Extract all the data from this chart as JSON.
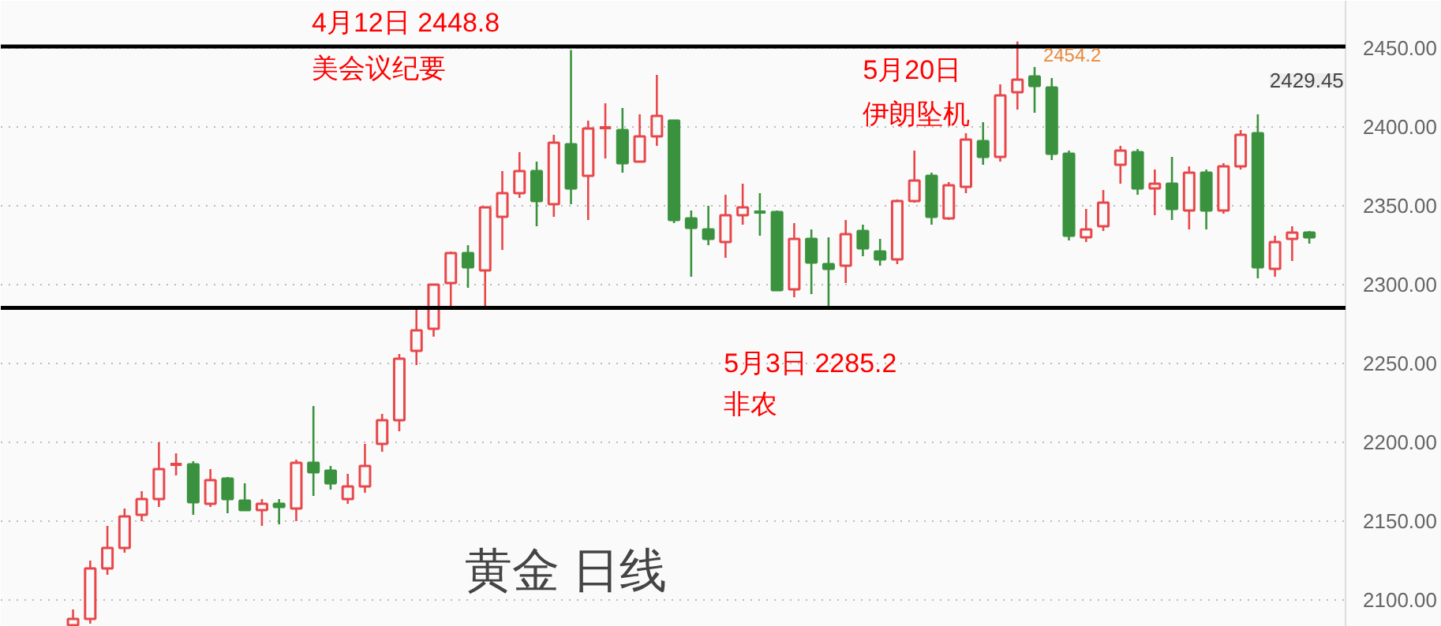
{
  "chart_data": {
    "type": "candlestick",
    "title": "黄金 日线",
    "categories": [
      null,
      null,
      null,
      null,
      null,
      null,
      null,
      null,
      null,
      null,
      null,
      null,
      null,
      null,
      null,
      null,
      null,
      null,
      null,
      null,
      null,
      null,
      null,
      null,
      null,
      null,
      null,
      null,
      null,
      null,
      null,
      null,
      null,
      null,
      null,
      null,
      null,
      null,
      null,
      null,
      null,
      null,
      null,
      null,
      null,
      null,
      null,
      null,
      null,
      null,
      null,
      null,
      null,
      null,
      null,
      null,
      null,
      null,
      null,
      null,
      null,
      null,
      null,
      null,
      null,
      null,
      null,
      null,
      null,
      null,
      null,
      null,
      null
    ],
    "ohlc": [
      [
        2084,
        2094,
        2083,
        2088
      ],
      [
        2088,
        2125,
        2085,
        2120
      ],
      [
        2120,
        2147,
        2116,
        2133
      ],
      [
        2133,
        2158,
        2130,
        2153
      ],
      [
        2154,
        2169,
        2150,
        2164
      ],
      [
        2164,
        2200,
        2159,
        2183
      ],
      [
        2185,
        2193,
        2179,
        2186
      ],
      [
        2186,
        2188,
        2154,
        2162
      ],
      [
        2161,
        2183,
        2159,
        2176
      ],
      [
        2177,
        2178,
        2155,
        2164
      ],
      [
        2163,
        2174,
        2157,
        2157
      ],
      [
        2157,
        2164,
        2147,
        2161
      ],
      [
        2161,
        2164,
        2148,
        2159
      ],
      [
        2158,
        2189,
        2150,
        2187
      ],
      [
        2187,
        2223,
        2166,
        2181
      ],
      [
        2182,
        2185,
        2170,
        2174
      ],
      [
        2164,
        2180,
        2161,
        2172
      ],
      [
        2172,
        2199,
        2168,
        2185
      ],
      [
        2199,
        2218,
        2194,
        2214
      ],
      [
        2214,
        2256,
        2207,
        2253
      ],
      [
        2258,
        2285,
        2249,
        2271
      ],
      [
        2272,
        2300,
        2267,
        2300
      ],
      [
        2301,
        2321,
        2286,
        2320
      ],
      [
        2320,
        2325,
        2298,
        2311
      ],
      [
        2309,
        2349,
        2286,
        2349
      ],
      [
        2343,
        2372,
        2322,
        2358
      ],
      [
        2358,
        2384,
        2355,
        2372
      ],
      [
        2372,
        2378,
        2337,
        2353
      ],
      [
        2351,
        2395,
        2343,
        2390
      ],
      [
        2389,
        2448.8,
        2351,
        2361
      ],
      [
        2369,
        2404,
        2341,
        2399
      ],
      [
        2398.5,
        2415,
        2380,
        2399.5
      ],
      [
        2398,
        2412,
        2371,
        2377
      ],
      [
        2378,
        2408,
        2378,
        2394
      ],
      [
        2394,
        2433,
        2388,
        2407
      ],
      [
        2404,
        2404,
        2339,
        2341
      ],
      [
        2342,
        2347,
        2305,
        2336
      ],
      [
        2335,
        2350,
        2325,
        2329
      ],
      [
        2327,
        2357,
        2317,
        2344
      ],
      [
        2344,
        2364,
        2338,
        2349
      ],
      [
        2347,
        2358,
        2331,
        2346
      ],
      [
        2346,
        2347,
        2296,
        2296.5
      ],
      [
        2297,
        2339,
        2292,
        2329
      ],
      [
        2329,
        2335,
        2294,
        2314
      ],
      [
        2313,
        2330,
        2285.2,
        2310
      ],
      [
        2312,
        2341,
        2301,
        2332
      ],
      [
        2334,
        2338,
        2318,
        2323
      ],
      [
        2321,
        2329,
        2312,
        2316
      ],
      [
        2316,
        2354,
        2313,
        2353
      ],
      [
        2353,
        2385,
        2352,
        2366
      ],
      [
        2369,
        2371,
        2338,
        2343
      ],
      [
        2342,
        2365,
        2341,
        2363
      ],
      [
        2362,
        2396,
        2358,
        2392
      ],
      [
        2391,
        2403,
        2376,
        2381
      ],
      [
        2381,
        2427,
        2378,
        2420
      ],
      [
        2422,
        2454.2,
        2411,
        2430
      ],
      [
        2432,
        2438,
        2409,
        2426
      ],
      [
        2425,
        2431,
        2379,
        2383
      ],
      [
        2383,
        2385,
        2328,
        2331
      ],
      [
        2330,
        2348,
        2327,
        2335
      ],
      [
        2337,
        2360,
        2334,
        2352
      ],
      [
        2376,
        2388,
        2364,
        2385
      ],
      [
        2384,
        2386,
        2357,
        2361
      ],
      [
        2361,
        2373,
        2344,
        2364
      ],
      [
        2364,
        2381,
        2341,
        2348
      ],
      [
        2347,
        2375,
        2335,
        2371
      ],
      [
        2371,
        2373,
        2335,
        2347
      ],
      [
        2347,
        2377,
        2345,
        2375
      ],
      [
        2375,
        2398,
        2373,
        2395
      ],
      [
        2396,
        2408,
        2304,
        2311
      ],
      [
        2310,
        2331,
        2305,
        2327
      ],
      [
        2329,
        2337,
        2315,
        2333
      ],
      [
        2333,
        2334,
        2326,
        2330
      ]
    ],
    "colors": [
      "#e8474a",
      "#e8474a",
      "#e8474a",
      "#e8474a",
      "#e8474a",
      "#e8474a",
      "#e8474a",
      "#3a923e",
      "#e8474a",
      "#3a923e",
      "#3a923e",
      "#e8474a",
      "#3a923e",
      "#e8474a",
      "#3a923e",
      "#3a923e",
      "#e8474a",
      "#e8474a",
      "#e8474a",
      "#e8474a",
      "#e8474a",
      "#e8474a",
      "#e8474a",
      "#3a923e",
      "#e8474a",
      "#e8474a",
      "#e8474a",
      "#3a923e",
      "#e8474a",
      "#3a923e",
      "#e8474a",
      "#e8474a",
      "#3a923e",
      "#e8474a",
      "#e8474a",
      "#3a923e",
      "#3a923e",
      "#3a923e",
      "#e8474a",
      "#e8474a",
      "#3a923e",
      "#3a923e",
      "#e8474a",
      "#3a923e",
      "#3a923e",
      "#e8474a",
      "#3a923e",
      "#3a923e",
      "#e8474a",
      "#e8474a",
      "#3a923e",
      "#e8474a",
      "#e8474a",
      "#3a923e",
      "#e8474a",
      "#e8474a",
      "#3a923e",
      "#3a923e",
      "#3a923e",
      "#e8474a",
      "#e8474a",
      "#e8474a",
      "#3a923e",
      "#e8474a",
      "#3a923e",
      "#e8474a",
      "#3a923e",
      "#e8474a",
      "#e8474a",
      "#3a923e",
      "#e8474a",
      "#e8474a",
      "#3a923e"
    ],
    "ylim": [
      2083,
      2480
    ],
    "yticks": [
      {
        "value": 2100,
        "label": "2100.00"
      },
      {
        "value": 2150,
        "label": "2150.00"
      },
      {
        "value": 2200,
        "label": "2200.00"
      },
      {
        "value": 2250,
        "label": "2250.00"
      },
      {
        "value": 2300,
        "label": "2300.00"
      },
      {
        "value": 2350,
        "label": "2350.00"
      },
      {
        "value": 2400,
        "label": "2400.00"
      },
      {
        "value": 2450,
        "label": "2450.00"
      }
    ],
    "tick_labels": "y",
    "grid": "y",
    "ref_lines": [
      {
        "axis": "y",
        "value": 2451,
        "color": "#000000"
      },
      {
        "axis": "y",
        "value": 2285.2,
        "color": "#000000"
      }
    ],
    "annotations": [
      "4月12日 2448.8",
      "美会议纪要",
      "5月20日",
      "伊朗坠机",
      "5月3日 2285.2",
      "非农",
      {
        "text": "2454.2",
        "y": 2454.2
      },
      "2429.45"
    ]
  }
}
